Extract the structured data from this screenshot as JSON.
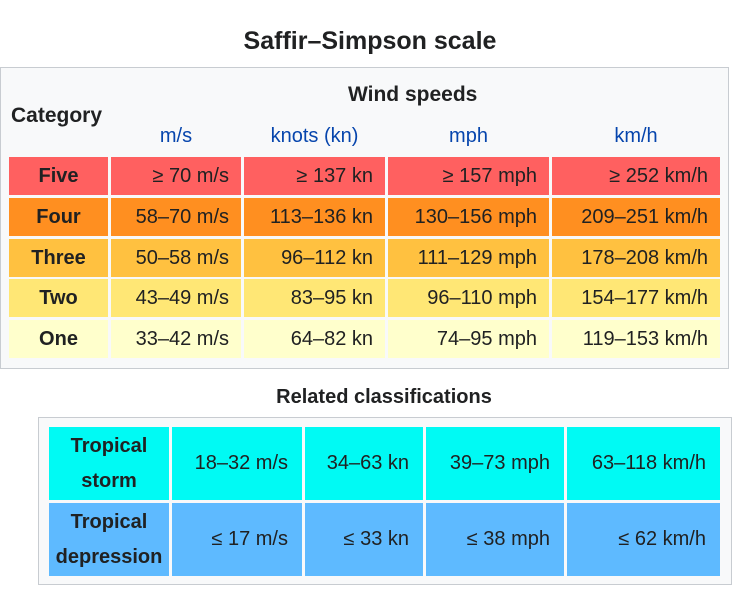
{
  "title": "Saffir–Simpson scale",
  "header": {
    "category": "Category",
    "wind_speeds": "Wind speeds",
    "units": [
      "m/s",
      "knots (kn)",
      "mph",
      "km/h"
    ]
  },
  "categories": [
    {
      "name": "Five",
      "ms": "≥ 70 m/s",
      "kn": "≥ 137 kn",
      "mph": "≥ 157 mph",
      "kmh": "≥ 252 km/h",
      "color": "#ff6060"
    },
    {
      "name": "Four",
      "ms": "58–70 m/s",
      "kn": "113–136 kn",
      "mph": "130–156 mph",
      "kmh": "209–251 km/h",
      "color": "#ff8f20"
    },
    {
      "name": "Three",
      "ms": "50–58 m/s",
      "kn": "96–112 kn",
      "mph": "111–129 mph",
      "kmh": "178–208 km/h",
      "color": "#ffc140"
    },
    {
      "name": "Two",
      "ms": "43–49 m/s",
      "kn": "83–95 kn",
      "mph": "96–110 mph",
      "kmh": "154–177 km/h",
      "color": "#ffe775"
    },
    {
      "name": "One",
      "ms": "33–42 m/s",
      "kn": "64–82 kn",
      "mph": "74–95 mph",
      "kmh": "119–153 km/h",
      "color": "#ffffcc"
    }
  ],
  "related_title": "Related classifications",
  "related": [
    {
      "line1": "Tropical",
      "line2": "storm",
      "ms": "18–32 m/s",
      "kn": "34–63 kn",
      "mph": "39–73 mph",
      "kmh": "63–118 km/h",
      "color": "#00faf4"
    },
    {
      "line1": "Tropical",
      "line2": "depression",
      "ms": "≤ 17 m/s",
      "kn": "≤ 33 kn",
      "mph": "≤ 38 mph",
      "kmh": "≤ 62 km/h",
      "color": "#5ebaff"
    }
  ]
}
